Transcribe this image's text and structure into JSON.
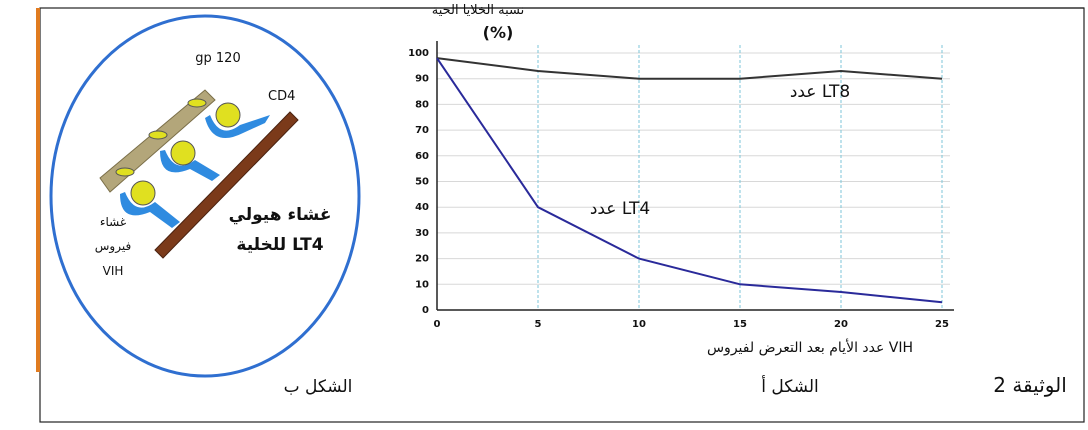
{
  "chart_data": {
    "type": "line",
    "ylabel": "نسبة الخلايا الحية",
    "ylabel_unit": "(%)",
    "xlabel": "عدد الأيام بعد التعرض لفيروس VIH",
    "x": [
      0,
      5,
      10,
      15,
      20,
      25
    ],
    "series": [
      {
        "name": "عدد LT8",
        "color": "#333333",
        "values": [
          98,
          93,
          90,
          90,
          93,
          90
        ]
      },
      {
        "name": "عدد LT4",
        "color": "#2a2a9a",
        "values": [
          98,
          40,
          20,
          10,
          7,
          3
        ]
      }
    ],
    "xlim": [
      0,
      25
    ],
    "xticks": [
      0,
      5,
      10,
      15,
      20,
      25
    ],
    "ylim": [
      0,
      100
    ],
    "yticks": [
      0,
      10,
      20,
      30,
      40,
      50,
      60,
      70,
      80,
      90,
      100
    ],
    "grid": true
  },
  "figure_b": {
    "gp_label": "gp 120",
    "cd_label": "CD4",
    "virus_membrane": [
      "غشاء",
      "فيروس",
      "VIH"
    ],
    "cell_membrane": [
      "غشاء هيولي",
      "للخلية LT4"
    ]
  },
  "captions": {
    "document": "الوثيقة 2",
    "figure_a": "الشكل أ",
    "figure_b": "الشكل ب"
  }
}
